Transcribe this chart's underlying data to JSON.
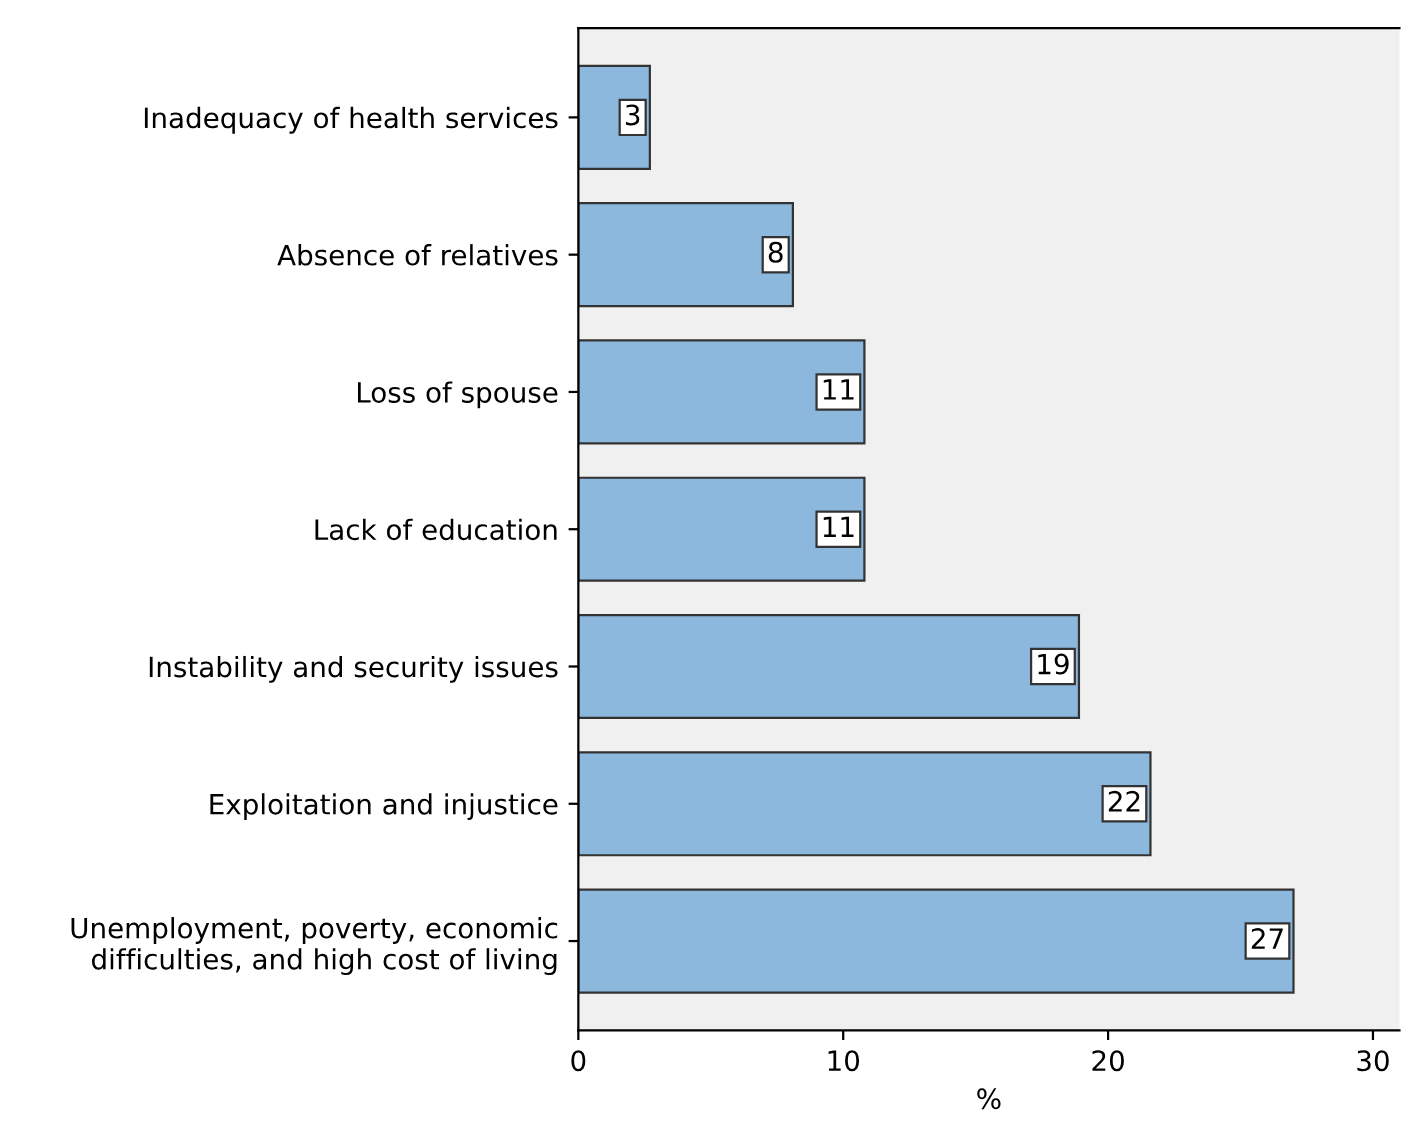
{
  "chart_data": {
    "type": "bar",
    "orientation": "horizontal",
    "xlabel": "%",
    "categories": [
      "Inadequacy of health services",
      "Absence of relatives",
      "Loss of spouse",
      "Lack of education",
      "Instability and security issues",
      "Exploitation and injustice",
      "Unemployment, poverty, economic\ndifficulties, and high cost of living"
    ],
    "values": [
      2.7,
      8.1,
      10.8,
      10.8,
      18.9,
      21.6,
      27.0
    ],
    "value_labels": [
      "3",
      "8",
      "11",
      "11",
      "19",
      "22",
      "27"
    ],
    "color": "#8cb8de",
    "xlim": [
      0,
      31
    ],
    "xticks": [
      0,
      10,
      20,
      30
    ],
    "grid": false,
    "legend": false
  }
}
